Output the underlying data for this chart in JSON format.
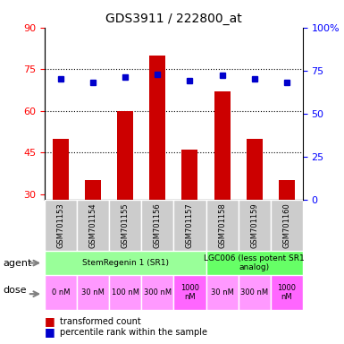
{
  "title": "GDS3911 / 222800_at",
  "samples": [
    "GSM701153",
    "GSM701154",
    "GSM701155",
    "GSM701156",
    "GSM701157",
    "GSM701158",
    "GSM701159",
    "GSM701160"
  ],
  "bar_values": [
    50,
    35,
    60,
    80,
    46,
    67,
    50,
    35
  ],
  "percentile_values": [
    70,
    68,
    71,
    73,
    69,
    72,
    70,
    68
  ],
  "bar_color": "#cc0000",
  "dot_color": "#0000cc",
  "ylim_left": [
    28,
    90
  ],
  "ylim_right": [
    0,
    100
  ],
  "yticks_left": [
    30,
    45,
    60,
    75,
    90
  ],
  "yticks_right": [
    0,
    25,
    50,
    75,
    100
  ],
  "hlines": [
    45,
    60,
    75
  ],
  "agent_row": [
    {
      "label": "StemRegenin 1 (SR1)",
      "start": 0,
      "end": 5,
      "color": "#99ff99"
    },
    {
      "label": "LGC006 (less potent SR1\nanalog)",
      "start": 5,
      "end": 8,
      "color": "#66ff66"
    }
  ],
  "dose_labels": [
    "0 nM",
    "30 nM",
    "100 nM",
    "300 nM",
    "1000\nnM",
    "30 nM",
    "300 nM",
    "1000\nnM"
  ],
  "dose_colors": [
    "#ff99ff",
    "#ff99ff",
    "#ff99ff",
    "#ff99ff",
    "#ff66ff",
    "#ff99ff",
    "#ff99ff",
    "#ff66ff"
  ],
  "sample_bg_color": "#cccccc",
  "legend_bar_label": "transformed count",
  "legend_dot_label": "percentile rank within the sample",
  "agent_label": "agent",
  "dose_label": "dose"
}
